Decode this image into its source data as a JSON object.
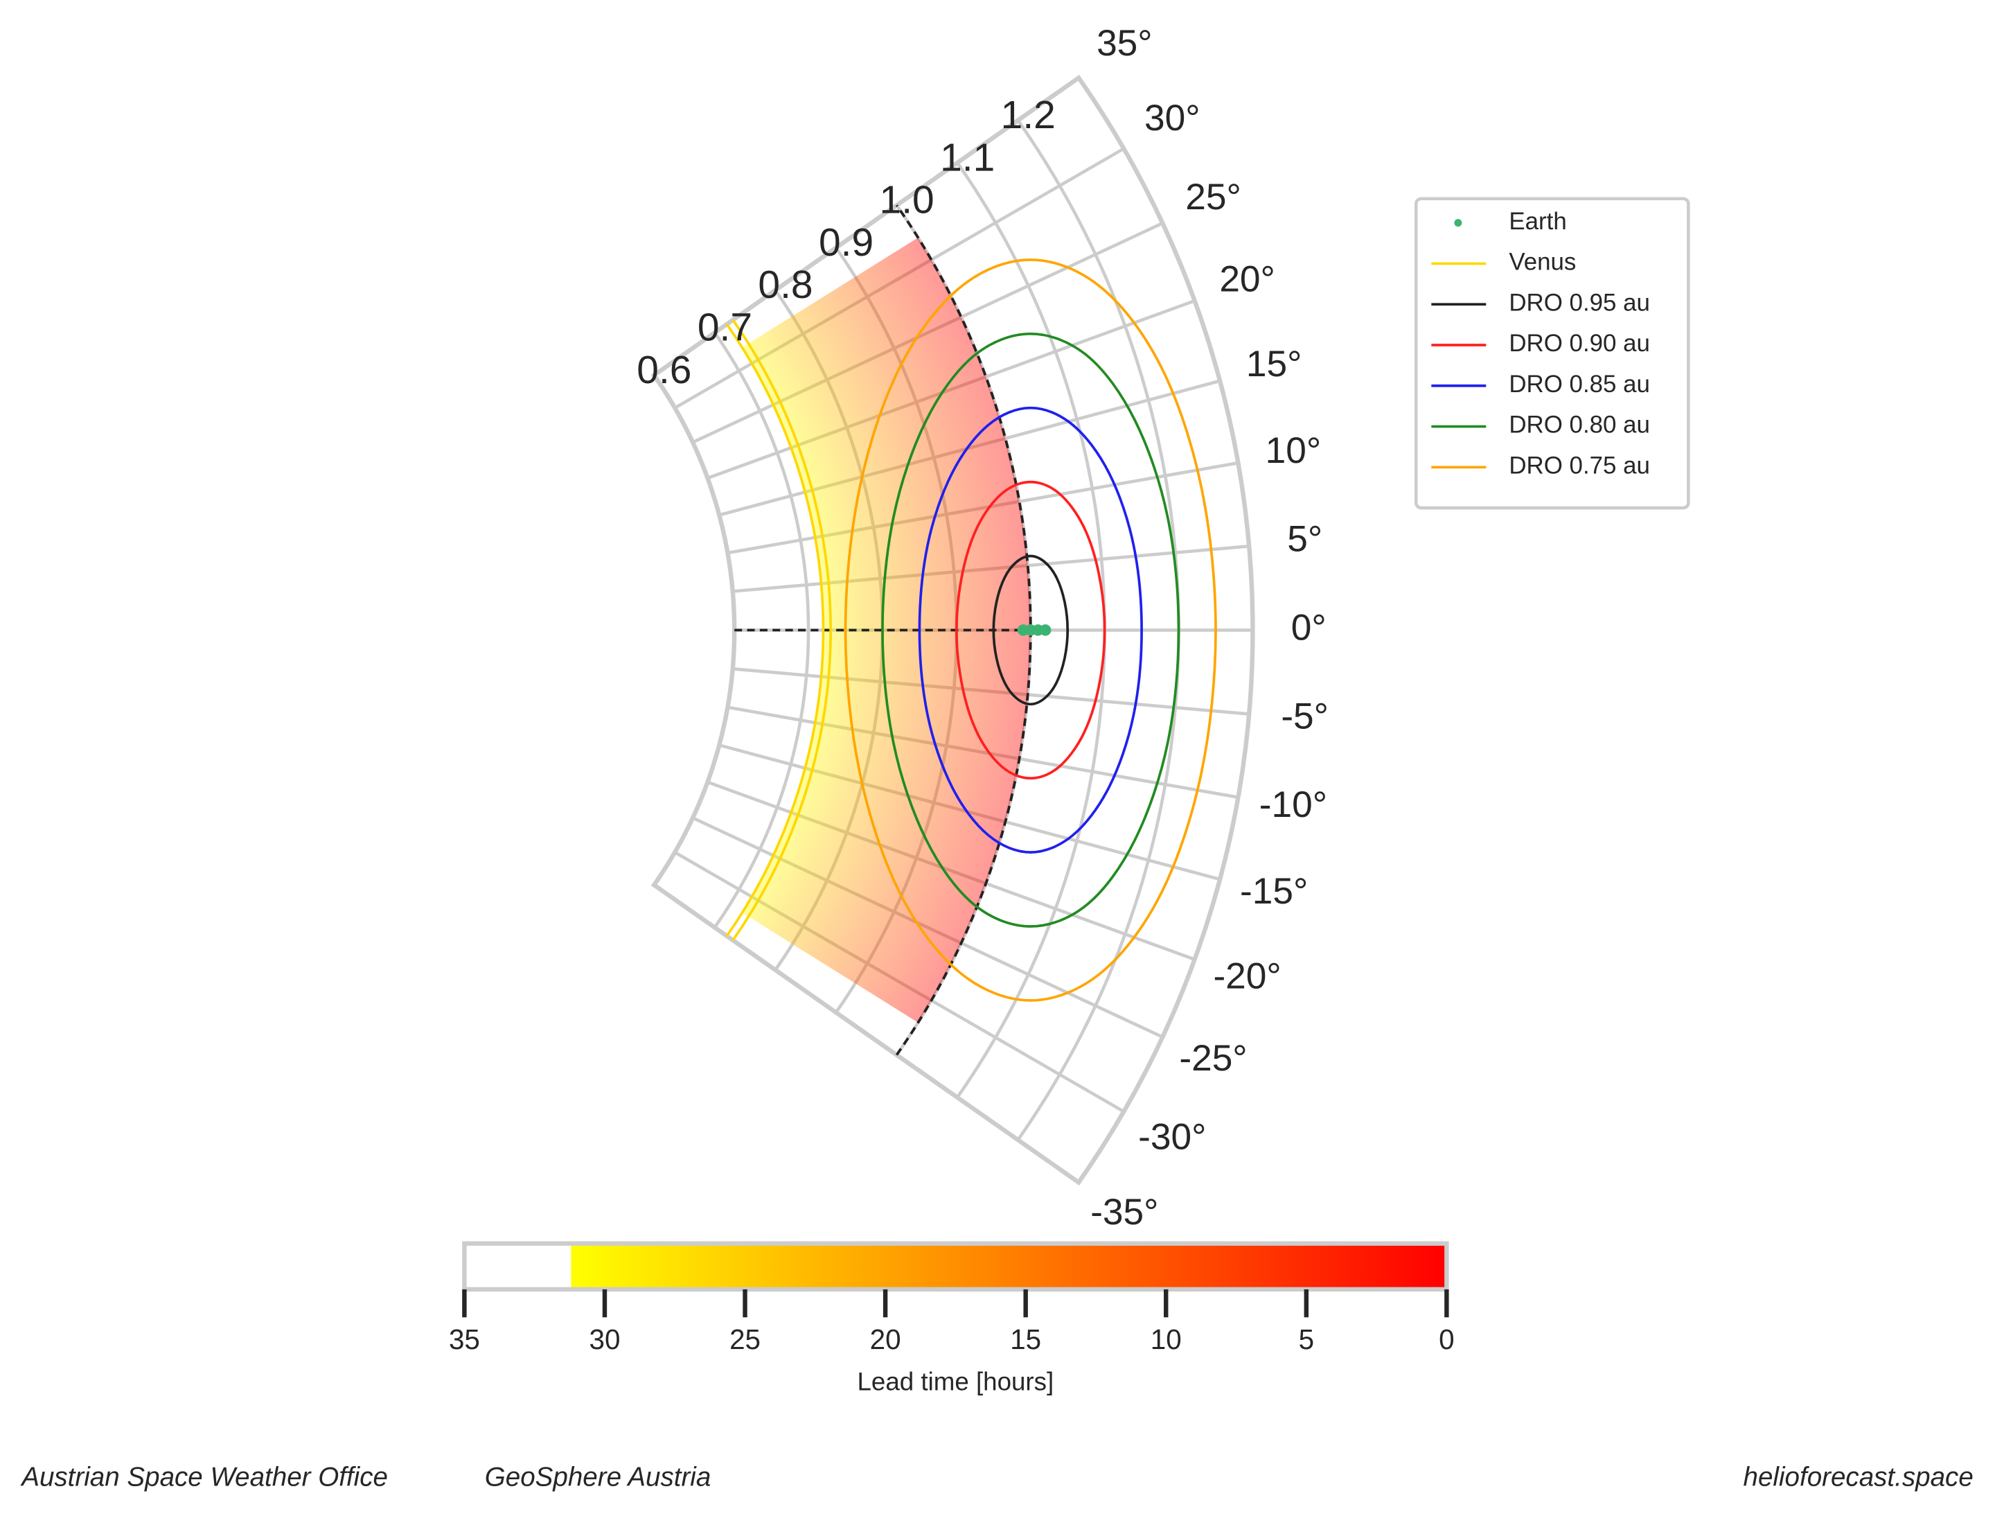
{
  "chart_data": {
    "type": "polar",
    "thetalim": [
      -35,
      35
    ],
    "thetaticks": [
      {
        "value": -35,
        "label": "-35°"
      },
      {
        "value": -30,
        "label": "-30°"
      },
      {
        "value": -25,
        "label": "-25°"
      },
      {
        "value": -20,
        "label": "-20°"
      },
      {
        "value": -15,
        "label": "-15°"
      },
      {
        "value": -10,
        "label": "-10°"
      },
      {
        "value": -5,
        "label": "-5°"
      },
      {
        "value": 0,
        "label": "0°"
      },
      {
        "value": 5,
        "label": "5°"
      },
      {
        "value": 10,
        "label": "10°"
      },
      {
        "value": 15,
        "label": "15°"
      },
      {
        "value": 20,
        "label": "20°"
      },
      {
        "value": 25,
        "label": "25°"
      },
      {
        "value": 30,
        "label": "30°"
      },
      {
        "value": 35,
        "label": "35°"
      }
    ],
    "rlim": [
      0.6,
      1.3
    ],
    "rticks": [
      0.6,
      0.7,
      0.8,
      0.9,
      {
        "value": 1,
        "label": "1.0"
      },
      1.1,
      1.2
    ],
    "grid": true,
    "legend": "upper right",
    "shaded_region": {
      "theta": [
        -32,
        32
      ],
      "r": [
        0.72,
        1.0
      ],
      "alpha": 0.4
    },
    "dashed_lines": [
      {
        "color": "#222222",
        "theta": [
          -35,
          35
        ],
        "r": [
          1.0,
          1.0
        ]
      },
      {
        "color": "#222222",
        "theta": [
          0,
          0
        ],
        "r": [
          0.6,
          1.0
        ]
      }
    ],
    "series": [
      {
        "name": "Earth",
        "color": "#3cb371",
        "marker": "point",
        "theta": [
          0,
          0,
          0,
          0
        ],
        "r": [
          0.99,
          1.0,
          1.01,
          1.02
        ]
      },
      {
        "name": "Venus",
        "color": "#ffd700",
        "theta": [
          -35,
          35,
          null,
          -35,
          35
        ],
        "r": [
          0.72,
          0.72,
          null,
          0.73,
          0.73
        ]
      },
      {
        "name": "DRO 0.95 au",
        "color": "#222222",
        "x": [
          1.05,
          1.046,
          1.035,
          1.019,
          1.0,
          0.981,
          0.965,
          0.954,
          0.95,
          0.954,
          0.965,
          0.981,
          1.0,
          1.019,
          1.035,
          1.046,
          1.05
        ],
        "y": [
          0,
          0.038,
          0.071,
          0.092,
          0.1,
          0.092,
          0.071,
          0.038,
          0,
          -0.038,
          -0.071,
          -0.092,
          -0.1,
          -0.092,
          -0.071,
          -0.038,
          0
        ]
      },
      {
        "name": "DRO 0.90 au",
        "color": "#ff2020",
        "x": [
          1.1,
          1.092,
          1.071,
          1.038,
          1.0,
          0.962,
          0.929,
          0.908,
          0.9,
          0.908,
          0.929,
          0.962,
          1.0,
          1.038,
          1.071,
          1.092,
          1.1
        ],
        "y": [
          0,
          0.077,
          0.141,
          0.185,
          0.2,
          0.185,
          0.141,
          0.077,
          0,
          -0.077,
          -0.141,
          -0.185,
          -0.2,
          -0.185,
          -0.141,
          -0.077,
          0
        ]
      },
      {
        "name": "DRO 0.85 au",
        "color": "#2020ee",
        "x": [
          1.15,
          1.139,
          1.106,
          1.057,
          1.0,
          0.943,
          0.894,
          0.861,
          0.85,
          0.861,
          0.894,
          0.943,
          1.0,
          1.057,
          1.106,
          1.139,
          1.15
        ],
        "y": [
          0,
          0.115,
          0.212,
          0.277,
          0.3,
          0.277,
          0.212,
          0.115,
          0,
          -0.115,
          -0.212,
          -0.277,
          -0.3,
          -0.277,
          -0.212,
          -0.115,
          0
        ]
      },
      {
        "name": "DRO 0.80 au",
        "color": "#228b22",
        "x": [
          1.2,
          1.185,
          1.141,
          1.077,
          1.0,
          0.923,
          0.859,
          0.815,
          0.8,
          0.815,
          0.859,
          0.923,
          1.0,
          1.077,
          1.141,
          1.185,
          1.2
        ],
        "y": [
          0,
          0.153,
          0.283,
          0.37,
          0.4,
          0.37,
          0.283,
          0.153,
          0,
          -0.153,
          -0.283,
          -0.37,
          -0.4,
          -0.37,
          -0.283,
          -0.153,
          0
        ]
      },
      {
        "name": "DRO 0.75 au",
        "color": "#ffa500",
        "x": [
          1.25,
          1.231,
          1.177,
          1.096,
          1.0,
          0.904,
          0.823,
          0.769,
          0.75,
          0.769,
          0.823,
          0.904,
          1.0,
          1.096,
          1.177,
          1.231,
          1.25
        ],
        "y": [
          0,
          0.191,
          0.354,
          0.462,
          0.5,
          0.462,
          0.354,
          0.191,
          0,
          -0.191,
          -0.354,
          -0.462,
          -0.5,
          -0.462,
          -0.354,
          -0.191,
          0
        ]
      }
    ],
    "colorbar": {
      "label": "Lead time [hours]",
      "lim": [
        35,
        0
      ],
      "ticks": [
        35,
        30,
        25,
        20,
        15,
        10,
        5,
        0
      ],
      "cmap_range": [
        31.2,
        0
      ],
      "colors": [
        "#ffff00",
        "#ff0000"
      ]
    }
  },
  "footer": {
    "left": "Austrian Space Weather Office",
    "middle": "GeoSphere Austria",
    "right": "helioforecast.space"
  }
}
